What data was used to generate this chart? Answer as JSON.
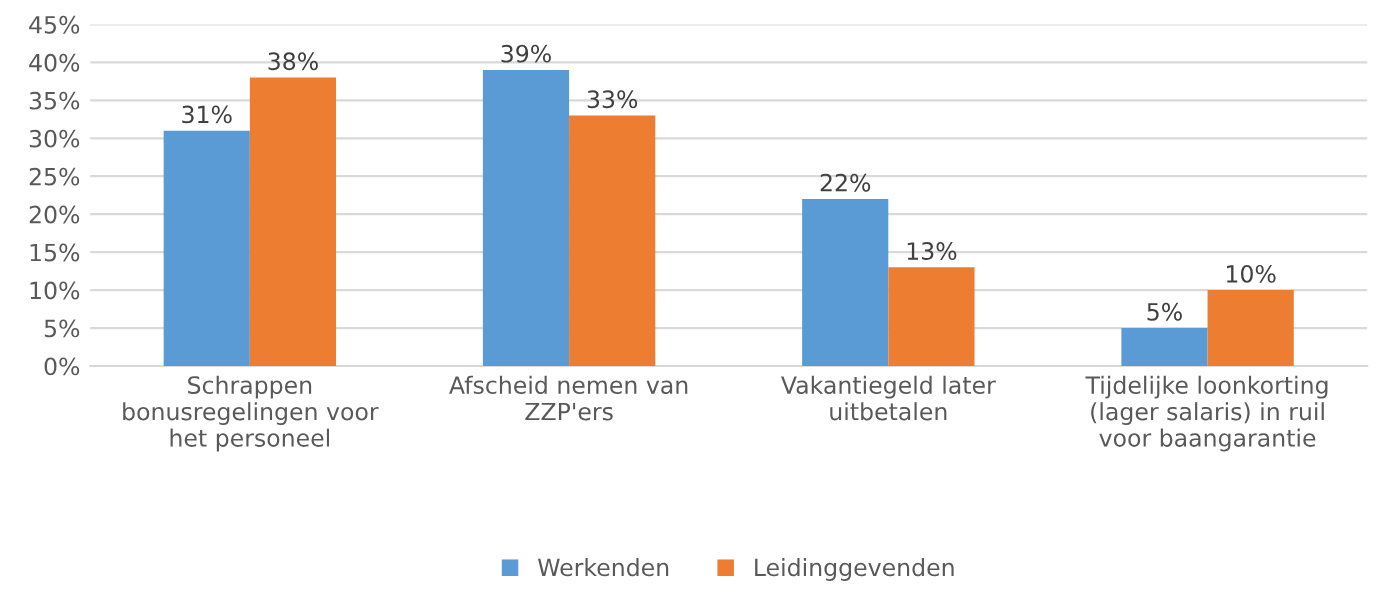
{
  "chart_data": {
    "type": "bar",
    "categories": [
      "Schrappen\nbonusregelingen voor\nhet personeel",
      "Afscheid nemen van\nZZP'ers",
      "Vakantiegeld later\nuitbetalen",
      "Tijdelijke loonkorting\n(lager salaris) in ruil\nvoor baangarantie"
    ],
    "series": [
      {
        "name": "Werkenden",
        "color": "#5b9bd5",
        "values": [
          31,
          39,
          22,
          5
        ],
        "value_labels": [
          "31%",
          "39%",
          "22%",
          "5%"
        ]
      },
      {
        "name": "Leidinggevenden",
        "color": "#ed7d31",
        "values": [
          38,
          33,
          13,
          10
        ],
        "value_labels": [
          "38%",
          "33%",
          "13%",
          "10%"
        ]
      }
    ],
    "ylim": [
      0,
      45
    ],
    "yticks": [
      {
        "value": 0,
        "label": "0%"
      },
      {
        "value": 5,
        "label": "5%"
      },
      {
        "value": 10,
        "label": "10%"
      },
      {
        "value": 15,
        "label": "15%"
      },
      {
        "value": 20,
        "label": "20%"
      },
      {
        "value": 25,
        "label": "25%"
      },
      {
        "value": 30,
        "label": "30%"
      },
      {
        "value": 35,
        "label": "35%"
      },
      {
        "value": 40,
        "label": "40%"
      },
      {
        "value": 45,
        "label": "45%"
      }
    ],
    "grid": "y",
    "legend": "bottom"
  }
}
